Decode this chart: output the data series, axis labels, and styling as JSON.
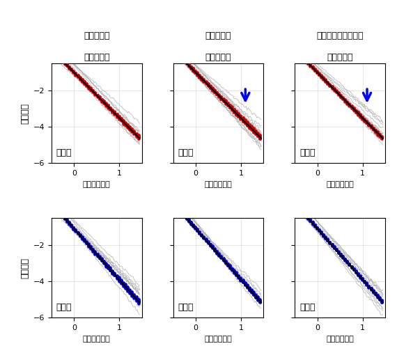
{
  "titles": [
    [
      "飢餓状態の",
      "野生型線虫"
    ],
    [
      "餌を食べた",
      "野生型線虫"
    ],
    [
      "砂糖水だけを飲んだ",
      "野生型線虫"
    ]
  ],
  "title_bold_parts": [
    [
      "飢餓状態"
    ],
    [
      "餌"
    ],
    [
      "砂糖水"
    ]
  ],
  "row_labels": [
    "活動期",
    "休止期"
  ],
  "xlabel_top": "活動期の時間",
  "xlabel_bottom": "休止期の時間",
  "ylabel": "出現頻度",
  "xlim": [
    -0.5,
    1.5
  ],
  "ylim": [
    -6,
    -0.5
  ],
  "yticks": [
    -6,
    -4,
    -2
  ],
  "xticks": [
    0,
    1
  ],
  "top_line_slope": -2.5,
  "top_line_intercept": -1.0,
  "bottom_line_slope": -2.8,
  "bottom_line_intercept": -1.1,
  "has_arrow": [
    false,
    true,
    true
  ],
  "arrow_color": "#0000ff",
  "top_data_color": "#cc0000",
  "bottom_data_color": "#0000cc",
  "gray_color": "#aaaaaa",
  "black_color": "#000000",
  "background": "#ffffff",
  "n_gray_lines": 12,
  "seed": 42
}
